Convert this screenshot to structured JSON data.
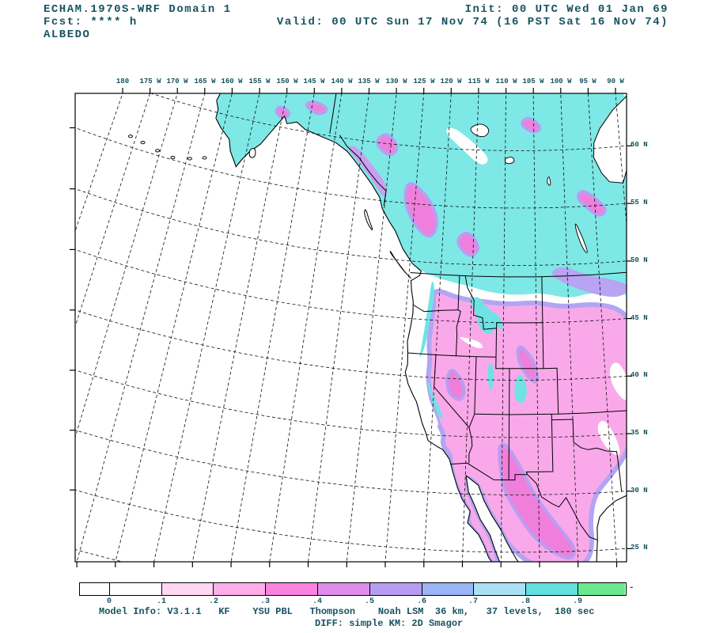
{
  "header": {
    "title": "ECHAM.1970S-WRF Domain 1",
    "fcst_line": "Fcst: **** h",
    "variable": "ALBEDO",
    "init_line": "Init: 00 UTC Wed 01 Jan 69",
    "valid_line": "Valid: 00 UTC Sun 17 Nov 74 (16 PST Sat 16 Nov 74)"
  },
  "map": {
    "lon_ticks": [
      {
        "label": "180",
        "lon": -180
      },
      {
        "label": "175 W",
        "lon": -175
      },
      {
        "label": "170 W",
        "lon": -170
      },
      {
        "label": "165 W",
        "lon": -165
      },
      {
        "label": "160 W",
        "lon": -160
      },
      {
        "label": "155 W",
        "lon": -155
      },
      {
        "label": "150 W",
        "lon": -150
      },
      {
        "label": "145 W",
        "lon": -145
      },
      {
        "label": "140 W",
        "lon": -140
      },
      {
        "label": "135 W",
        "lon": -135
      },
      {
        "label": "130 W",
        "lon": -130
      },
      {
        "label": "125 W",
        "lon": -125
      },
      {
        "label": "120 W",
        "lon": -120
      },
      {
        "label": "115 W",
        "lon": -115
      },
      {
        "label": "110 W",
        "lon": -110
      },
      {
        "label": "105 W",
        "lon": -105
      },
      {
        "label": "100 W",
        "lon": -100
      },
      {
        "label": "95 W",
        "lon": -95
      },
      {
        "label": "90 W",
        "lon": -90
      }
    ],
    "lat_ticks": [
      {
        "label": "60 N",
        "lat": 60
      },
      {
        "label": "55 N",
        "lat": 55
      },
      {
        "label": "50 N",
        "lat": 50
      },
      {
        "label": "45 N",
        "lat": 45
      },
      {
        "label": "40 N",
        "lat": 40
      },
      {
        "label": "35 N",
        "lat": 35
      },
      {
        "label": "30 N",
        "lat": 30
      },
      {
        "label": "25 N",
        "lat": 25
      }
    ]
  },
  "colorbar": {
    "tick_labels": [
      "0",
      ".1",
      ".2",
      ".3",
      ".4",
      ".5",
      ".6",
      ".7",
      ".8",
      ".9"
    ],
    "end_label": "-",
    "segment_colors": [
      "#ffffff",
      "#ffffff",
      "#ffd7f2",
      "#ffaeea",
      "#f984de",
      "#df8cec",
      "#b69df2",
      "#9bb4f6",
      "#abe0f4",
      "#62dfdf",
      "#6ce98e"
    ]
  },
  "footer": {
    "line1": "Model Info: V3.1.1   KF    YSU PBL   Thompson    Noah LSM  36 km,   37 levels,  180 sec",
    "line2": "DIFF: simple KM: 2D Smagor"
  },
  "colors": {
    "text": "#165360",
    "snow_cyan": "#7de8e6",
    "mid_pink": "#f9a9e9",
    "magenta": "#ef7fda",
    "violet": "#b9a3f3"
  }
}
